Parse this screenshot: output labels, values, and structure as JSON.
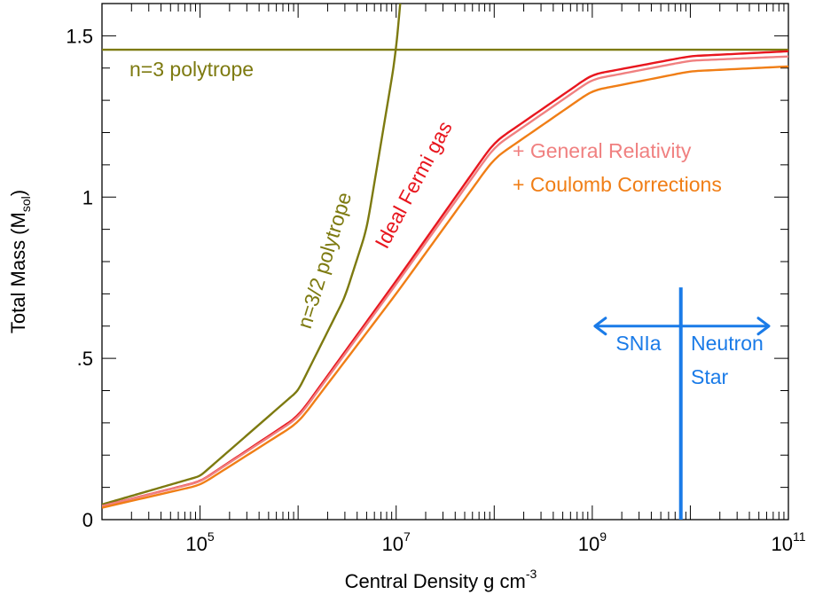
{
  "chart_data": {
    "type": "line",
    "xlabel": "Central Density g cm",
    "xlabel_sup": "-3",
    "ylabel_main": "Total Mass (M",
    "ylabel_sub": "sol",
    "ylabel_end": ")",
    "x_scale": "log10",
    "xlim": [
      10000,
      100000000000
    ],
    "ylim": [
      0,
      1.6
    ],
    "grid": false,
    "x_ticks": [
      {
        "base": "10",
        "exp": "5",
        "value": 100000
      },
      {
        "base": "10",
        "exp": "7",
        "value": 10000000
      },
      {
        "base": "10",
        "exp": "9",
        "value": 1000000000
      },
      {
        "base": "10",
        "exp": "11",
        "value": 100000000000
      }
    ],
    "y_ticks": [
      {
        "label": "0",
        "value": 0
      },
      {
        "label": ".5",
        "value": 0.5
      },
      {
        "label": "1",
        "value": 1
      },
      {
        "label": "1.5",
        "value": 1.5
      }
    ],
    "colors": {
      "polytrope": "#7d7a10",
      "fermi": "#e8161e",
      "gr": "#f08080",
      "coulomb": "#f07e16",
      "marker": "#1a7be8"
    },
    "series": [
      {
        "label": "n=3 polytrope",
        "color": "#7d7a10",
        "x": [
          10000,
          100000000000
        ],
        "y": [
          1.457,
          1.457
        ]
      },
      {
        "label": "n=3/2 polytrope",
        "color": "#7d7a10",
        "x": [
          10000,
          100000,
          1000000,
          3000000,
          5000000,
          10000000,
          11000000
        ],
        "y": [
          0.047,
          0.135,
          0.4,
          0.69,
          0.9,
          1.45,
          1.6
        ]
      },
      {
        "label": "Ideal Fermi gas",
        "color": "#e8161e",
        "x": [
          10000,
          100000,
          1000000,
          10000000,
          100000000,
          1000000000,
          10000000000,
          100000000000
        ],
        "y": [
          0.042,
          0.118,
          0.32,
          0.74,
          1.17,
          1.38,
          1.437,
          1.452
        ]
      },
      {
        "label": "+ General Relativity",
        "color": "#f08080",
        "x": [
          10000,
          100000,
          1000000,
          10000000,
          100000000,
          1000000000,
          10000000000,
          100000000000
        ],
        "y": [
          0.042,
          0.117,
          0.315,
          0.73,
          1.155,
          1.365,
          1.423,
          1.436
        ]
      },
      {
        "label": "+ Coulomb Corrections",
        "color": "#f07e16",
        "x": [
          10000,
          100000,
          1000000,
          10000000,
          100000000,
          1000000000,
          10000000000,
          100000000000
        ],
        "y": [
          0.037,
          0.107,
          0.3,
          0.7,
          1.12,
          1.33,
          1.39,
          1.405
        ]
      }
    ],
    "annotations": {
      "n3": "n=3 polytrope",
      "n32": "n=3/2 polytrope",
      "fermi": "Ideal Fermi gas",
      "gr": "+ General Relativity",
      "coulomb": "+ Coulomb Corrections",
      "snia": "SNIa",
      "neutron": "Neutron",
      "star": "Star"
    },
    "divider": {
      "x": 8000000000,
      "y_top": 0.72,
      "y_bottom": 0,
      "arrow_y": 0.6,
      "arrow_left_x": 1000000000,
      "arrow_right_x": 100000000000
    }
  }
}
